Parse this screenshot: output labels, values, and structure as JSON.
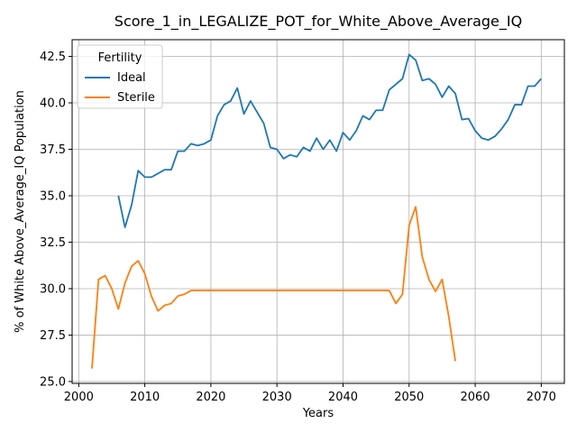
{
  "chart_data": {
    "type": "line",
    "title": "Score_1_in_LEGALIZE_POT_for_White_Above_Average_IQ",
    "xlabel": "Years",
    "ylabel": "% of White Above_Average_IQ Population",
    "xlim": [
      1999,
      2073.5
    ],
    "ylim": [
      24.9,
      43.4
    ],
    "xticks": [
      "2000",
      "2010",
      "2020",
      "2030",
      "2040",
      "2050",
      "2060",
      "2070"
    ],
    "yticks": [
      "25.0",
      "27.5",
      "30.0",
      "32.5",
      "35.0",
      "37.5",
      "40.0",
      "42.5"
    ],
    "grid": true,
    "legend": {
      "title": "Fertility",
      "placement": "upper-left"
    },
    "series": [
      {
        "name": "Ideal",
        "color": "#1f77b4",
        "x": [
          2006,
          2007,
          2008,
          2009,
          2010,
          2011,
          2012,
          2013,
          2014,
          2015,
          2016,
          2017,
          2018,
          2019,
          2020,
          2021,
          2022,
          2023,
          2024,
          2025,
          2026,
          2027,
          2028,
          2029,
          2030,
          2031,
          2032,
          2033,
          2034,
          2035,
          2036,
          2037,
          2038,
          2039,
          2040,
          2041,
          2042,
          2043,
          2044,
          2045,
          2046,
          2047,
          2048,
          2049,
          2050,
          2051,
          2052,
          2053,
          2054,
          2055,
          2056,
          2057,
          2058,
          2059,
          2060,
          2061,
          2062,
          2063,
          2064,
          2065,
          2066,
          2067,
          2068,
          2069,
          2070
        ],
        "values": [
          35.0,
          33.3,
          34.5,
          36.35,
          36.0,
          36.0,
          36.2,
          36.4,
          36.4,
          37.4,
          37.4,
          37.8,
          37.7,
          37.8,
          38.0,
          39.3,
          39.9,
          40.1,
          40.8,
          39.4,
          40.1,
          39.5,
          38.9,
          37.6,
          37.5,
          37.0,
          37.2,
          37.1,
          37.6,
          37.4,
          38.1,
          37.5,
          38.0,
          37.4,
          38.4,
          38.0,
          38.5,
          39.3,
          39.1,
          39.6,
          39.6,
          40.7,
          41.0,
          41.3,
          42.6,
          42.3,
          41.2,
          41.3,
          41.0,
          40.3,
          40.9,
          40.5,
          39.1,
          39.15,
          38.5,
          38.1,
          38.0,
          38.2,
          38.6,
          39.1,
          39.9,
          39.9,
          40.9,
          40.9,
          41.3
        ]
      },
      {
        "name": "Sterile",
        "color": "#ff7f0e",
        "x": [
          2002,
          2003,
          2004,
          2005,
          2006,
          2007,
          2008,
          2009,
          2010,
          2011,
          2012,
          2013,
          2014,
          2015,
          2016,
          2017,
          2018,
          2019,
          2020,
          2021,
          2022,
          2023,
          2024,
          2025,
          2026,
          2027,
          2028,
          2029,
          2030,
          2031,
          2032,
          2033,
          2034,
          2035,
          2036,
          2037,
          2038,
          2039,
          2040,
          2041,
          2042,
          2043,
          2044,
          2045,
          2046,
          2047,
          2048,
          2049,
          2050,
          2051,
          2052,
          2053,
          2054,
          2055,
          2056,
          2057
        ],
        "values": [
          25.7,
          30.5,
          30.7,
          30.0,
          28.9,
          30.3,
          31.2,
          31.5,
          30.8,
          29.6,
          28.8,
          29.1,
          29.2,
          29.6,
          29.7,
          29.9,
          29.9,
          29.9,
          29.9,
          29.9,
          29.9,
          29.9,
          29.9,
          29.9,
          29.9,
          29.9,
          29.9,
          29.9,
          29.9,
          29.9,
          29.9,
          29.9,
          29.9,
          29.9,
          29.9,
          29.9,
          29.9,
          29.9,
          29.9,
          29.9,
          29.9,
          29.9,
          29.9,
          29.9,
          29.9,
          29.9,
          29.2,
          29.7,
          33.4,
          34.4,
          31.7,
          30.5,
          29.85,
          30.5,
          28.5,
          26.1
        ]
      }
    ]
  }
}
